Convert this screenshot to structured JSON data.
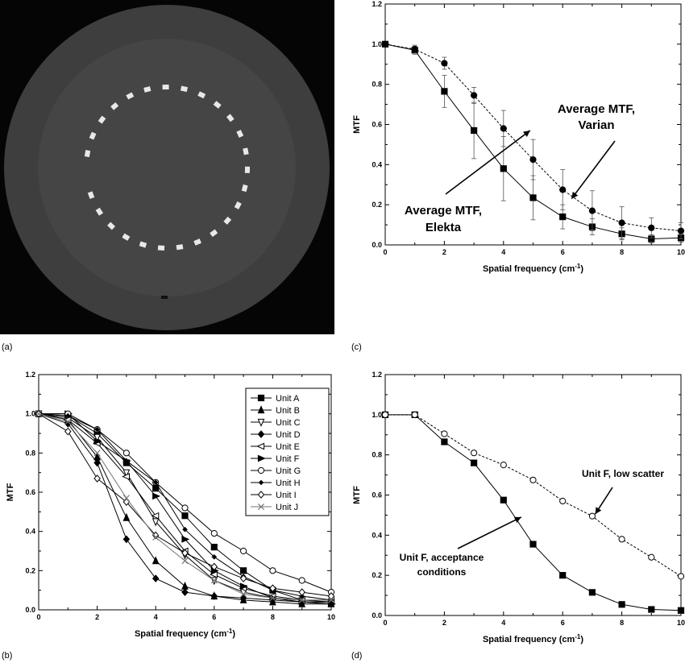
{
  "panel_labels": {
    "a": "(a)",
    "b": "(b)",
    "c": "(c)",
    "d": "(d)"
  },
  "chart_data": [
    {
      "id": "c",
      "type": "line",
      "xlabel": "Spatial frequency (cm",
      "xlabel_sup": "-1",
      "xlabel_tail": ")",
      "ylabel": "MTF",
      "xlim": [
        0,
        10
      ],
      "ylim": [
        0,
        1.2
      ],
      "xticks": [
        "0",
        "2",
        "4",
        "6",
        "8",
        "10"
      ],
      "yticks": [
        "0.0",
        "0.2",
        "0.4",
        "0.6",
        "0.8",
        "1.0",
        "1.2"
      ],
      "series": [
        {
          "marker": "square",
          "dash": "solid",
          "x": [
            0,
            1,
            2,
            3,
            4,
            5,
            6,
            7,
            8,
            9,
            10
          ],
          "values": [
            1.0,
            0.97,
            0.765,
            0.57,
            0.38,
            0.235,
            0.14,
            0.09,
            0.055,
            0.03,
            0.035
          ],
          "err": [
            0,
            0.02,
            0.08,
            0.14,
            0.16,
            0.11,
            0.06,
            0.04,
            0.03,
            0.02,
            0.02
          ]
        },
        {
          "marker": "circle",
          "dash": "dashed",
          "x": [
            0,
            1,
            2,
            3,
            4,
            5,
            6,
            7,
            8,
            9,
            10
          ],
          "values": [
            1.0,
            0.975,
            0.905,
            0.745,
            0.58,
            0.425,
            0.275,
            0.17,
            0.11,
            0.085,
            0.07
          ],
          "err": [
            0,
            0.02,
            0.03,
            0.04,
            0.09,
            0.1,
            0.1,
            0.1,
            0.08,
            0.05,
            0.04
          ]
        }
      ],
      "annotations": [
        {
          "lines": [
            "Average MTF,",
            "Varian"
          ]
        },
        {
          "lines": [
            "Average MTF,",
            "Elekta"
          ]
        }
      ]
    },
    {
      "id": "b",
      "type": "line",
      "xlabel": "Spatial frequency (cm",
      "xlabel_sup": "-1",
      "xlabel_tail": ")",
      "ylabel": "MTF",
      "xlim": [
        0,
        10
      ],
      "ylim": [
        0,
        1.2
      ],
      "xticks": [
        "0",
        "2",
        "4",
        "6",
        "8",
        "10"
      ],
      "yticks": [
        "0.0",
        "0.2",
        "0.4",
        "0.6",
        "0.8",
        "1.0",
        "1.2"
      ],
      "legend_position": "top-right",
      "x": [
        0,
        1,
        2,
        3,
        4,
        5,
        6,
        7,
        8,
        9,
        10
      ],
      "series": [
        {
          "name": "Unit A",
          "marker": "square",
          "values": [
            1.0,
            0.99,
            0.9,
            0.75,
            0.62,
            0.48,
            0.32,
            0.2,
            0.1,
            0.05,
            0.04
          ]
        },
        {
          "name": "Unit B",
          "marker": "triangle",
          "values": [
            1.0,
            0.97,
            0.78,
            0.47,
            0.25,
            0.12,
            0.07,
            0.05,
            0.04,
            0.03,
            0.03
          ]
        },
        {
          "name": "Unit C",
          "marker": "triangle-down-open",
          "values": [
            1.0,
            0.98,
            0.88,
            0.7,
            0.45,
            0.28,
            0.15,
            0.09,
            0.06,
            0.04,
            0.04
          ]
        },
        {
          "name": "Unit D",
          "marker": "diamond",
          "values": [
            1.0,
            0.95,
            0.75,
            0.36,
            0.16,
            0.09,
            0.07,
            0.06,
            0.05,
            0.04,
            0.04
          ]
        },
        {
          "name": "Unit E",
          "marker": "triangle-left-open",
          "values": [
            1.0,
            0.97,
            0.85,
            0.68,
            0.48,
            0.3,
            0.18,
            0.11,
            0.07,
            0.05,
            0.05
          ]
        },
        {
          "name": "Unit F",
          "marker": "triangle-right",
          "values": [
            1.0,
            1.0,
            0.86,
            0.76,
            0.58,
            0.36,
            0.2,
            0.12,
            0.06,
            0.04,
            0.03
          ]
        },
        {
          "name": "Unit G",
          "marker": "circle-open",
          "values": [
            1.0,
            1.0,
            0.92,
            0.8,
            0.65,
            0.52,
            0.39,
            0.3,
            0.2,
            0.15,
            0.09
          ]
        },
        {
          "name": "Unit H",
          "marker": "diamond-small",
          "values": [
            1.0,
            0.99,
            0.92,
            0.76,
            0.65,
            0.41,
            0.27,
            0.17,
            0.1,
            0.07,
            0.05
          ]
        },
        {
          "name": "Unit I",
          "marker": "diamond-open",
          "values": [
            1.0,
            0.91,
            0.67,
            0.55,
            0.38,
            0.29,
            0.22,
            0.16,
            0.11,
            0.09,
            0.07
          ]
        },
        {
          "name": "Unit J",
          "marker": "x",
          "values": [
            1.0,
            0.96,
            0.8,
            0.57,
            0.37,
            0.25,
            0.15,
            0.08,
            0.06,
            0.05,
            0.05
          ]
        }
      ]
    },
    {
      "id": "d",
      "type": "line",
      "xlabel": "Spatial frequency (cm",
      "xlabel_sup": "-1",
      "xlabel_tail": ")",
      "ylabel": "MTF",
      "xlim": [
        0,
        10
      ],
      "ylim": [
        0,
        1.2
      ],
      "xticks": [
        "0",
        "2",
        "4",
        "6",
        "8",
        "10"
      ],
      "yticks": [
        "0.0",
        "0.2",
        "0.4",
        "0.6",
        "0.8",
        "1.0",
        "1.2"
      ],
      "series": [
        {
          "marker": "square",
          "dash": "solid",
          "x": [
            0,
            1,
            2,
            3,
            4,
            5,
            6,
            7,
            8,
            9,
            10
          ],
          "values": [
            1.0,
            1.0,
            0.865,
            0.76,
            0.575,
            0.355,
            0.2,
            0.115,
            0.055,
            0.03,
            0.025
          ]
        },
        {
          "marker": "circle-open",
          "dash": "dashed",
          "x": [
            0,
            1,
            2,
            3,
            4,
            5,
            6,
            7,
            8,
            9,
            10
          ],
          "values": [
            1.0,
            1.0,
            0.905,
            0.81,
            0.75,
            0.675,
            0.57,
            0.495,
            0.38,
            0.29,
            0.195
          ]
        }
      ],
      "annotations": [
        {
          "lines": [
            "Unit F, low scatter"
          ]
        },
        {
          "lines": [
            "Unit F, acceptance",
            "conditions"
          ]
        }
      ]
    }
  ]
}
